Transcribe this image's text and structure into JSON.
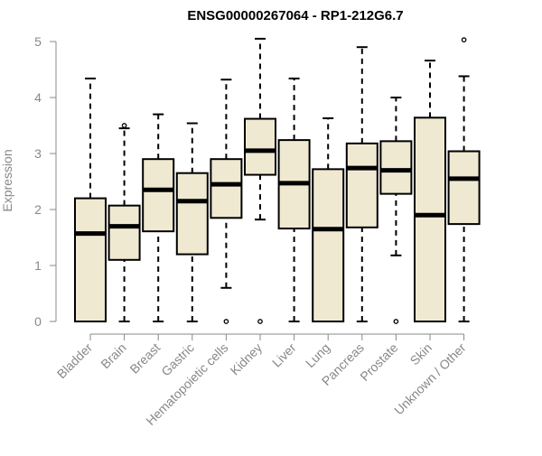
{
  "chart_data": {
    "type": "boxplot",
    "title": "ENSG00000267064 - RP1-212G6.7",
    "xlabel": "",
    "ylabel": "Expression",
    "ylim": [
      0,
      5
    ],
    "yticks": [
      0,
      1,
      2,
      3,
      4,
      5
    ],
    "grid": false,
    "legend": "none",
    "box_color": "#efe9d2",
    "categories": [
      "Bladder",
      "Brain",
      "Breast",
      "Gastric",
      "Hematopoietic cells",
      "Kidney",
      "Liver",
      "Lung",
      "Pancreas",
      "Prostate",
      "Skin",
      "Unknown / Other"
    ],
    "boxes": [
      {
        "label": "Bladder",
        "min": 0,
        "q1": 0,
        "median": 1.57,
        "q3": 2.2,
        "max": 4.34,
        "outliers": []
      },
      {
        "label": "Brain",
        "min": 0,
        "q1": 1.1,
        "median": 1.7,
        "q3": 2.07,
        "max": 3.45,
        "outliers": [
          3.5
        ]
      },
      {
        "label": "Breast",
        "min": 0,
        "q1": 1.61,
        "median": 2.35,
        "q3": 2.9,
        "max": 3.7,
        "outliers": []
      },
      {
        "label": "Gastric",
        "min": 0,
        "q1": 1.2,
        "median": 2.15,
        "q3": 2.65,
        "max": 3.54,
        "outliers": []
      },
      {
        "label": "Hematopoietic cells",
        "min": 0.6,
        "q1": 1.85,
        "median": 2.45,
        "q3": 2.9,
        "max": 4.32,
        "outliers": [
          0
        ]
      },
      {
        "label": "Kidney",
        "min": 1.82,
        "q1": 2.62,
        "median": 3.05,
        "q3": 3.62,
        "max": 5.05,
        "outliers": [
          0
        ]
      },
      {
        "label": "Liver",
        "min": 0,
        "q1": 1.66,
        "median": 2.47,
        "q3": 3.24,
        "max": 4.34,
        "outliers": []
      },
      {
        "label": "Lung",
        "min": 0,
        "q1": 0,
        "median": 1.65,
        "q3": 2.72,
        "max": 3.63,
        "outliers": []
      },
      {
        "label": "Pancreas",
        "min": 0,
        "q1": 1.68,
        "median": 2.74,
        "q3": 3.18,
        "max": 4.9,
        "outliers": []
      },
      {
        "label": "Prostate",
        "min": 1.18,
        "q1": 2.28,
        "median": 2.7,
        "q3": 3.22,
        "max": 4.0,
        "outliers": [
          0
        ]
      },
      {
        "label": "Skin",
        "min": 0,
        "q1": 0,
        "median": 1.9,
        "q3": 3.64,
        "max": 4.66,
        "outliers": []
      },
      {
        "label": "Unknown / Other",
        "min": 0,
        "q1": 1.74,
        "median": 2.55,
        "q3": 3.04,
        "max": 4.38,
        "outliers": [
          5.03
        ]
      }
    ]
  }
}
